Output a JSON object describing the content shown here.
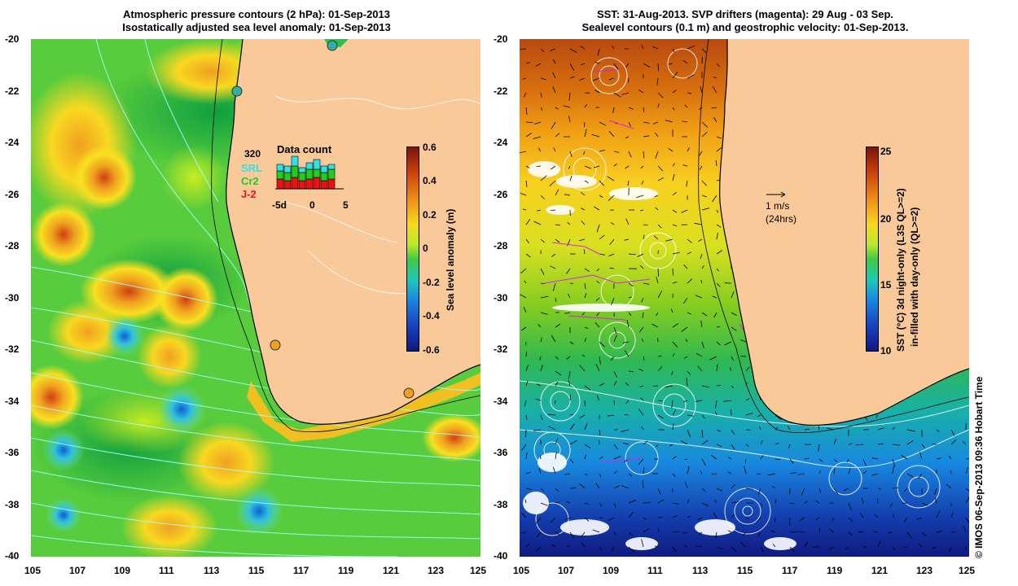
{
  "left_panel": {
    "title_line1": "Atmospheric pressure contours (2 hPa): 01-Sep-2013",
    "title_line2": "Isostatically adjusted sea level anomaly: 01-Sep-2013",
    "y_ticks": [
      "-20",
      "-22",
      "-24",
      "-26",
      "-28",
      "-30",
      "-32",
      "-34",
      "-36",
      "-38",
      "-40"
    ],
    "x_ticks": [
      "105",
      "107",
      "109",
      "111",
      "113",
      "115",
      "117",
      "119",
      "121",
      "123",
      "125"
    ],
    "colorbar": {
      "label": "Sea level anomaly (m)",
      "ticks": [
        "0.6",
        "0.4",
        "0.2",
        "0",
        "-0.2",
        "-0.4",
        "-0.6"
      ]
    },
    "data_count": {
      "title": "Data count",
      "max": "320",
      "series": [
        "SRL",
        "Cr2",
        "J-2"
      ],
      "series_colors": [
        "#33e0e8",
        "#22cc22",
        "#ee1111"
      ],
      "x_ticks": [
        "-5d",
        "0",
        "5"
      ]
    }
  },
  "right_panel": {
    "title_line1": "SST: 31-Aug-2013. SVP drifters (magenta): 29 Aug - 03 Sep.",
    "title_line2": "Sealevel contours (0.1 m) and geostrophic velocity: 01-Sep-2013.",
    "y_ticks": [
      "-20",
      "-22",
      "-24",
      "-26",
      "-28",
      "-30",
      "-32",
      "-34",
      "-36",
      "-38",
      "-40"
    ],
    "x_ticks": [
      "105",
      "107",
      "109",
      "111",
      "113",
      "115",
      "117",
      "119",
      "121",
      "123",
      "125"
    ],
    "velocity_scale": {
      "value": "1 m/s",
      "period": "(24hrs)"
    },
    "colorbar": {
      "label_line1": "SST (°C) 3d night-only (L3S QL>=2)",
      "label_line2": "in-filled with day-only (QL>=2)",
      "ticks": [
        "25",
        "20",
        "15",
        "10"
      ]
    }
  },
  "copyright": "© IMOS 06-Sep-2013 09:36 Hobart Time",
  "colors": {
    "land": "#f9c99a",
    "coast": "#000000",
    "contour": "#ffffff",
    "drifter": "#e020e0"
  }
}
